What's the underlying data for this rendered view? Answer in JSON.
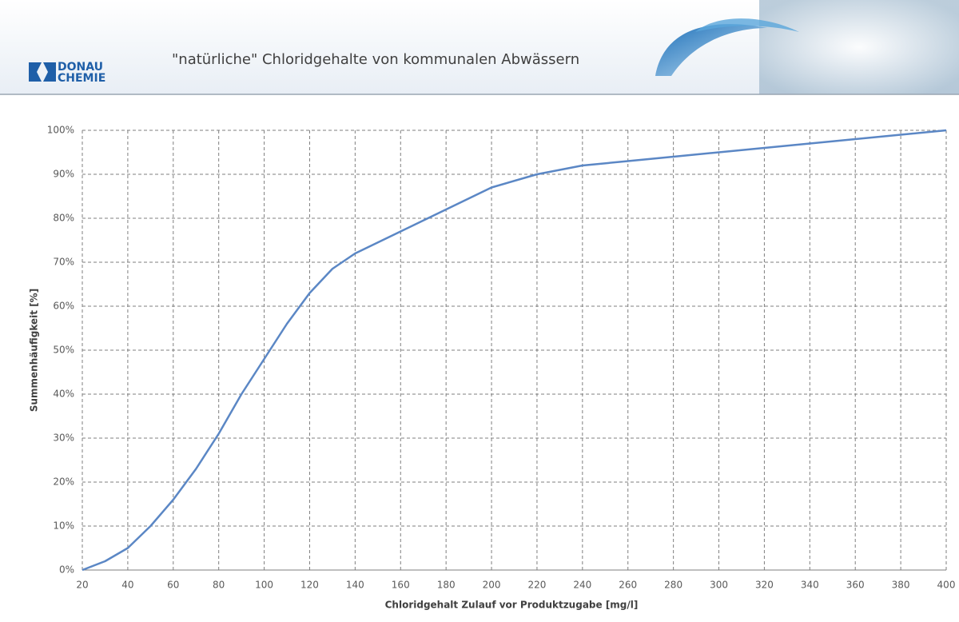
{
  "header": {
    "title": "\"natürliche\" Chloridgehalte von kommunalen Abwässern",
    "logo": {
      "line1": "DONAU",
      "line2": "CHEMIE"
    }
  },
  "chart_data": {
    "type": "line",
    "xlabel": "Chloridgehalt Zulauf vor Produktzugabe  [mg/l]",
    "ylabel": "Summenhäufigkeit [%]",
    "x": [
      20,
      30,
      40,
      50,
      60,
      70,
      80,
      90,
      100,
      110,
      120,
      130,
      140,
      160,
      180,
      200,
      220,
      240,
      260,
      280,
      300,
      320,
      340,
      360,
      380,
      400
    ],
    "values": [
      0,
      2,
      5,
      10,
      16,
      23,
      31,
      40,
      48,
      56,
      63,
      68.5,
      72,
      77,
      82,
      87,
      90,
      92,
      93,
      94,
      95,
      96,
      97,
      98,
      99,
      100
    ],
    "color": "#5b87c5",
    "xlim": [
      20,
      400
    ],
    "xticks": [
      20,
      40,
      60,
      80,
      100,
      120,
      140,
      160,
      180,
      200,
      220,
      240,
      260,
      280,
      300,
      320,
      340,
      360,
      380,
      400
    ],
    "ylim": [
      0,
      100
    ],
    "yticks": [
      {
        "value": 0,
        "label": "0%"
      },
      {
        "value": 10,
        "label": "10%"
      },
      {
        "value": 20,
        "label": "20%"
      },
      {
        "value": 30,
        "label": "30%"
      },
      {
        "value": 40,
        "label": "40%"
      },
      {
        "value": 50,
        "label": "50%"
      },
      {
        "value": 60,
        "label": "60%"
      },
      {
        "value": 70,
        "label": "70%"
      },
      {
        "value": 80,
        "label": "80%"
      },
      {
        "value": 90,
        "label": "90%"
      },
      {
        "value": 100,
        "label": "100%"
      }
    ],
    "grid": true
  }
}
